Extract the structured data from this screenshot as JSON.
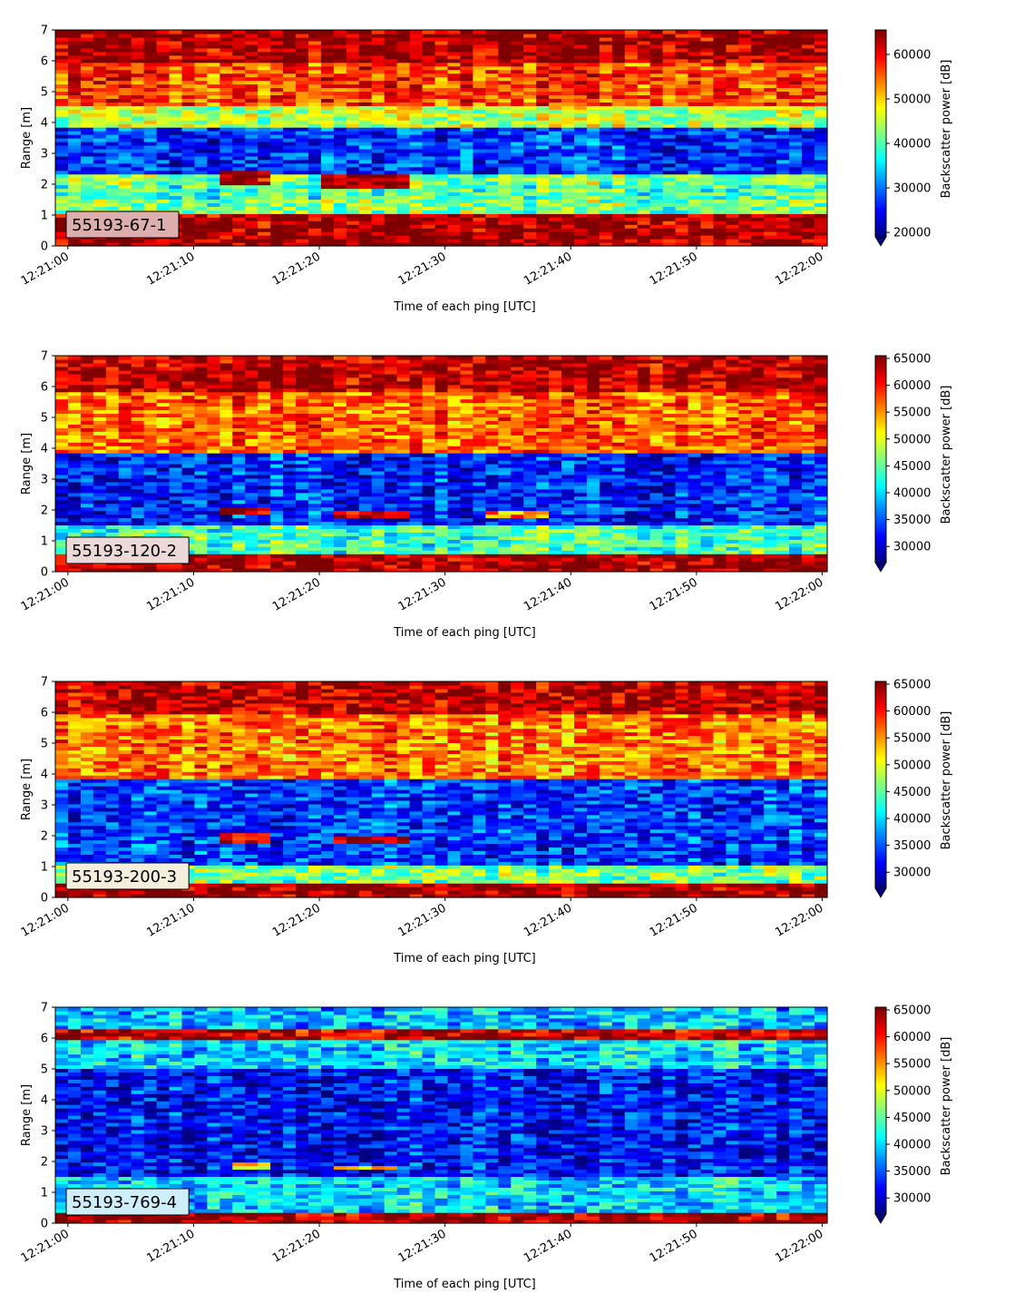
{
  "colors": {
    "colormap": "jet",
    "jet_stops": [
      "#00007f",
      "#0000ff",
      "#007fff",
      "#00ffff",
      "#7fff7f",
      "#ffff00",
      "#ff7f00",
      "#ff0000",
      "#7f0000"
    ],
    "label_box_edge": "#000000"
  },
  "chart_data": [
    {
      "type": "heatmap",
      "panel_label": "55193-67-1",
      "label_box_color": "#dcaeae",
      "xlabel": "Time of each ping [UTC]",
      "ylabel": "Range [m]",
      "colorbar_label": "Backscatter power [dB]",
      "x_start": "12:21:00",
      "x_end": "12:22:00",
      "x_ticks": [
        "12:21:00",
        "12:21:10",
        "12:21:20",
        "12:21:30",
        "12:21:40",
        "12:21:50",
        "12:22:00"
      ],
      "y_ticks": [
        "0",
        "1",
        "2",
        "3",
        "4",
        "5",
        "6",
        "7"
      ],
      "ylim": [
        0,
        7
      ],
      "colorbar_ticks": [
        "20000",
        "30000",
        "40000",
        "50000",
        "60000"
      ],
      "clim": [
        19000,
        65500
      ],
      "colorbar_extend": "min",
      "structure_summary": [
        {
          "feature": "strong bottom band",
          "range_m": [
            0.2,
            1.1
          ],
          "value": 64000
        },
        {
          "feature": "mid band",
          "range_m": [
            1.5,
            2.0
          ],
          "value": 40000
        },
        {
          "feature": "target echo",
          "time": [
            "12:21:12",
            "12:21:16"
          ],
          "range_m": [
            2.0,
            2.4
          ],
          "value": 64000
        },
        {
          "feature": "target echo",
          "time": [
            "12:21:20",
            "12:21:27"
          ],
          "range_m": [
            1.9,
            2.3
          ],
          "value": 64000
        },
        {
          "feature": "low-backscatter layer",
          "range_m": [
            2.3,
            3.9
          ],
          "value": 27000
        },
        {
          "feature": "transition",
          "range_m": [
            3.9,
            4.5
          ],
          "value": 45000
        },
        {
          "feature": "upper layer",
          "range_m": [
            4.5,
            6.0
          ],
          "value": 57000
        },
        {
          "feature": "surface band",
          "range_m": [
            6.0,
            7.0
          ],
          "value": 63500
        }
      ]
    },
    {
      "type": "heatmap",
      "panel_label": "55193-120-2",
      "label_box_color": "#eed9d9",
      "xlabel": "Time of each ping [UTC]",
      "ylabel": "Range [m]",
      "colorbar_label": "Backscatter power [dB]",
      "x_start": "12:21:00",
      "x_end": "12:22:00",
      "x_ticks": [
        "12:21:00",
        "12:21:10",
        "12:21:20",
        "12:21:30",
        "12:21:40",
        "12:21:50",
        "12:22:00"
      ],
      "y_ticks": [
        "0",
        "1",
        "2",
        "3",
        "4",
        "5",
        "6",
        "7"
      ],
      "ylim": [
        0,
        7
      ],
      "colorbar_ticks": [
        "30000",
        "35000",
        "40000",
        "45000",
        "50000",
        "55000",
        "60000",
        "65000"
      ],
      "clim": [
        27000,
        65500
      ],
      "colorbar_extend": "min",
      "structure_summary": [
        {
          "feature": "strong bottom band",
          "range_m": [
            0.25,
            0.55
          ],
          "value": 64500
        },
        {
          "feature": "mid band",
          "range_m": [
            0.6,
            1.5
          ],
          "value": 44000
        },
        {
          "feature": "target echo",
          "time": [
            "12:21:12",
            "12:21:16"
          ],
          "range_m": [
            1.85,
            2.1
          ],
          "value": 64000
        },
        {
          "feature": "target echo",
          "time": [
            "12:21:21",
            "12:21:27"
          ],
          "range_m": [
            1.75,
            2.0
          ],
          "value": 64000
        },
        {
          "feature": "weak echo",
          "time": [
            "12:21:33",
            "12:21:38"
          ],
          "range_m": [
            1.7,
            1.95
          ],
          "value": 55000
        },
        {
          "feature": "low-backscatter layer",
          "range_m": [
            1.5,
            3.8
          ],
          "value": 33000
        },
        {
          "feature": "upper layer",
          "range_m": [
            3.8,
            5.8
          ],
          "value": 57000
        },
        {
          "feature": "surface band",
          "range_m": [
            5.8,
            7.0
          ],
          "value": 63500
        }
      ]
    },
    {
      "type": "heatmap",
      "panel_label": "55193-200-3",
      "label_box_color": "#f3efdc",
      "xlabel": "Time of each ping [UTC]",
      "ylabel": "Range [m]",
      "colorbar_label": "Backscatter power [dB]",
      "x_start": "12:21:00",
      "x_end": "12:22:00",
      "x_ticks": [
        "12:21:00",
        "12:21:10",
        "12:21:20",
        "12:21:30",
        "12:21:40",
        "12:21:50",
        "12:22:00"
      ],
      "y_ticks": [
        "0",
        "1",
        "2",
        "3",
        "4",
        "5",
        "6",
        "7"
      ],
      "ylim": [
        0,
        7
      ],
      "colorbar_ticks": [
        "30000",
        "35000",
        "40000",
        "45000",
        "50000",
        "55000",
        "60000",
        "65000"
      ],
      "clim": [
        27000,
        65500
      ],
      "colorbar_extend": "min",
      "structure_summary": [
        {
          "feature": "strong bottom band",
          "range_m": [
            0.2,
            0.45
          ],
          "value": 64500
        },
        {
          "feature": "mid band",
          "range_m": [
            0.5,
            1.0
          ],
          "value": 46000
        },
        {
          "feature": "target echo",
          "time": [
            "12:21:12",
            "12:21:16"
          ],
          "range_m": [
            1.8,
            2.05
          ],
          "value": 63000
        },
        {
          "feature": "target echo",
          "time": [
            "12:21:21",
            "12:21:27"
          ],
          "range_m": [
            1.7,
            1.95
          ],
          "value": 63000
        },
        {
          "feature": "low-backscatter layer",
          "range_m": [
            1.0,
            3.8
          ],
          "value": 34000
        },
        {
          "feature": "upper layer",
          "range_m": [
            3.8,
            5.9
          ],
          "value": 56000
        },
        {
          "feature": "surface band",
          "range_m": [
            5.9,
            7.0
          ],
          "value": 63000
        }
      ]
    },
    {
      "type": "heatmap",
      "panel_label": "55193-769-4",
      "label_box_color": "#cfeefb",
      "xlabel": "Time of each ping [UTC]",
      "ylabel": "Range [m]",
      "colorbar_label": "Backscatter power [dB]",
      "x_start": "12:21:00",
      "x_end": "12:22:00",
      "x_ticks": [
        "12:21:00",
        "12:21:10",
        "12:21:20",
        "12:21:30",
        "12:21:40",
        "12:21:50",
        "12:22:00"
      ],
      "y_ticks": [
        "0",
        "1",
        "2",
        "3",
        "4",
        "5",
        "6",
        "7"
      ],
      "ylim": [
        0,
        7
      ],
      "colorbar_ticks": [
        "30000",
        "35000",
        "40000",
        "45000",
        "50000",
        "55000",
        "60000",
        "65000"
      ],
      "clim": [
        27000,
        65500
      ],
      "colorbar_extend": "min",
      "structure_summary": [
        {
          "feature": "strong bottom band",
          "range_m": [
            0.2,
            0.35
          ],
          "value": 64000
        },
        {
          "feature": "mid band",
          "range_m": [
            0.35,
            1.5
          ],
          "value": 40000
        },
        {
          "feature": "target echo",
          "time": [
            "12:21:13",
            "12:21:16"
          ],
          "range_m": [
            1.8,
            1.95
          ],
          "value": 52000
        },
        {
          "feature": "target echo",
          "time": [
            "12:21:21",
            "12:21:26"
          ],
          "range_m": [
            1.7,
            1.85
          ],
          "value": 53000
        },
        {
          "feature": "low-backscatter layer",
          "range_m": [
            1.5,
            5.0
          ],
          "value": 32000
        },
        {
          "feature": "upper layer",
          "range_m": [
            5.0,
            6.0
          ],
          "value": 40000
        },
        {
          "feature": "surface band",
          "range_m": [
            6.0,
            6.35
          ],
          "value": 63000
        },
        {
          "feature": "top layer",
          "range_m": [
            6.35,
            7.0
          ],
          "value": 39000
        }
      ]
    }
  ]
}
